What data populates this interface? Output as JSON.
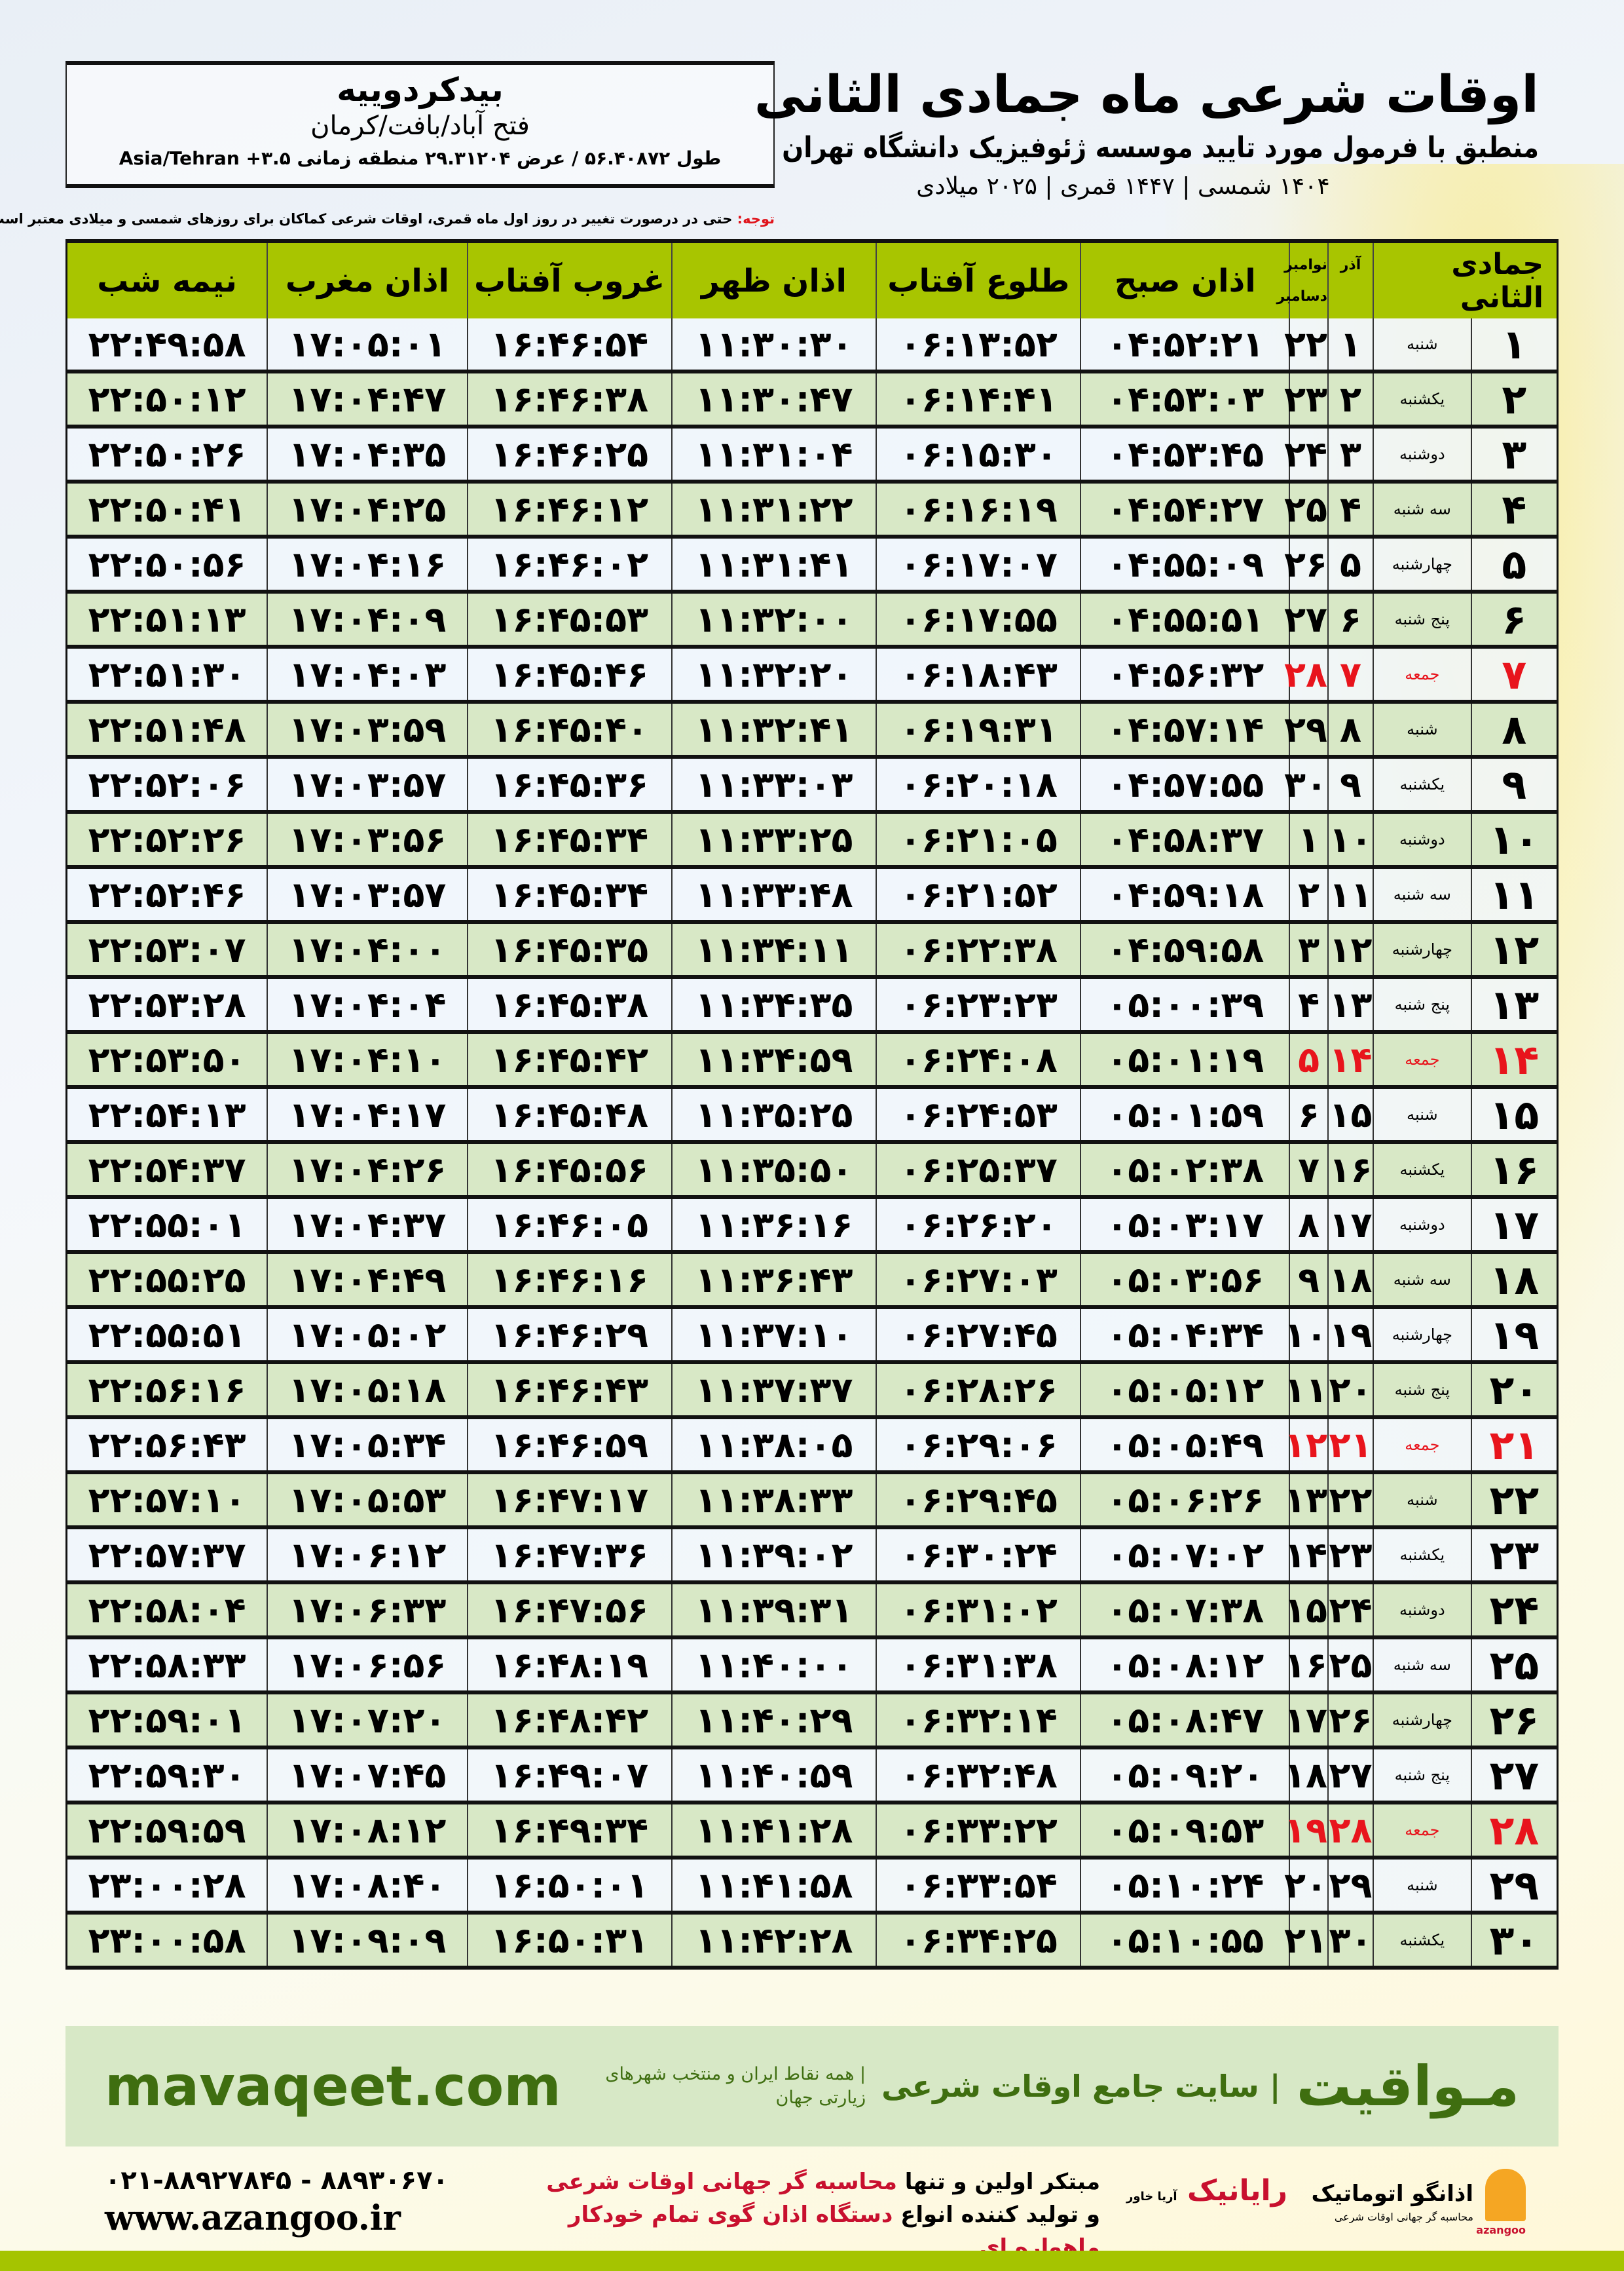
{
  "info": {
    "city": "بیدکردوییه",
    "region": "فتح آباد/بافت/کرمان",
    "coords": "طول ۵۶.۴۰۸۷۲ / عرض ۲۹.۳۱۲۰۴ منطقه زمانی ۳.۵+ Asia/Tehran"
  },
  "header": {
    "title": "اوقات شرعی ماه جمادی الثانی",
    "subtitle": "منطبق با فرمول مورد تایید موسسه ژئوفیزیک دانشگاه تهران",
    "years": "۱۴۰۴ شمسی | ۱۴۴۷ قمری | ۲۰۲۵ میلادی"
  },
  "note": {
    "label": "توجه:",
    "text": " حتی در درصورت تغییر در روز اول ماه قمری، اوقات شرعی کماکان برای روزهای شمسی و میلادی معتبر است."
  },
  "table": {
    "columns": {
      "month": "جمادی الثانی",
      "azar": "آذر",
      "nov": "نوامبر",
      "dec": "دسامبر",
      "fajr": "اذان صبح",
      "sunrise": "طلوع آفتاب",
      "dhuhr": "اذان ظهر",
      "sunset": "غروب آفتاب",
      "maghrib": "اذان مغرب",
      "midnight": "نیمه شب"
    },
    "holiday_color": "#e8141c",
    "header_color": "#a8c500",
    "rows": [
      {
        "d": "۱",
        "w": "شنبه",
        "a": "۱",
        "g": "۲۲",
        "t": [
          "۰۴:۵۲:۲۱",
          "۰۶:۱۳:۵۲",
          "۱۱:۳۰:۳۰",
          "۱۶:۴۶:۵۴",
          "۱۷:۰۵:۰۱",
          "۲۲:۴۹:۵۸"
        ]
      },
      {
        "d": "۲",
        "w": "یکشنبه",
        "a": "۲",
        "g": "۲۳",
        "t": [
          "۰۴:۵۳:۰۳",
          "۰۶:۱۴:۴۱",
          "۱۱:۳۰:۴۷",
          "۱۶:۴۶:۳۸",
          "۱۷:۰۴:۴۷",
          "۲۲:۵۰:۱۲"
        ]
      },
      {
        "d": "۳",
        "w": "دوشنبه",
        "a": "۳",
        "g": "۲۴",
        "t": [
          "۰۴:۵۳:۴۵",
          "۰۶:۱۵:۳۰",
          "۱۱:۳۱:۰۴",
          "۱۶:۴۶:۲۵",
          "۱۷:۰۴:۳۵",
          "۲۲:۵۰:۲۶"
        ]
      },
      {
        "d": "۴",
        "w": "سه شنبه",
        "a": "۴",
        "g": "۲۵",
        "t": [
          "۰۴:۵۴:۲۷",
          "۰۶:۱۶:۱۹",
          "۱۱:۳۱:۲۲",
          "۱۶:۴۶:۱۲",
          "۱۷:۰۴:۲۵",
          "۲۲:۵۰:۴۱"
        ]
      },
      {
        "d": "۵",
        "w": "چهارشنبه",
        "a": "۵",
        "g": "۲۶",
        "t": [
          "۰۴:۵۵:۰۹",
          "۰۶:۱۷:۰۷",
          "۱۱:۳۱:۴۱",
          "۱۶:۴۶:۰۲",
          "۱۷:۰۴:۱۶",
          "۲۲:۵۰:۵۶"
        ]
      },
      {
        "d": "۶",
        "w": "پنج شنبه",
        "a": "۶",
        "g": "۲۷",
        "t": [
          "۰۴:۵۵:۵۱",
          "۰۶:۱۷:۵۵",
          "۱۱:۳۲:۰۰",
          "۱۶:۴۵:۵۳",
          "۱۷:۰۴:۰۹",
          "۲۲:۵۱:۱۳"
        ]
      },
      {
        "d": "۷",
        "w": "جمعه",
        "a": "۷",
        "g": "۲۸",
        "h": true,
        "t": [
          "۰۴:۵۶:۳۲",
          "۰۶:۱۸:۴۳",
          "۱۱:۳۲:۲۰",
          "۱۶:۴۵:۴۶",
          "۱۷:۰۴:۰۳",
          "۲۲:۵۱:۳۰"
        ]
      },
      {
        "d": "۸",
        "w": "شنبه",
        "a": "۸",
        "g": "۲۹",
        "t": [
          "۰۴:۵۷:۱۴",
          "۰۶:۱۹:۳۱",
          "۱۱:۳۲:۴۱",
          "۱۶:۴۵:۴۰",
          "۱۷:۰۳:۵۹",
          "۲۲:۵۱:۴۸"
        ]
      },
      {
        "d": "۹",
        "w": "یکشنبه",
        "a": "۹",
        "g": "۳۰",
        "t": [
          "۰۴:۵۷:۵۵",
          "۰۶:۲۰:۱۸",
          "۱۱:۳۳:۰۳",
          "۱۶:۴۵:۳۶",
          "۱۷:۰۳:۵۷",
          "۲۲:۵۲:۰۶"
        ]
      },
      {
        "d": "۱۰",
        "w": "دوشنبه",
        "a": "۱۰",
        "g": "۱",
        "t": [
          "۰۴:۵۸:۳۷",
          "۰۶:۲۱:۰۵",
          "۱۱:۳۳:۲۵",
          "۱۶:۴۵:۳۴",
          "۱۷:۰۳:۵۶",
          "۲۲:۵۲:۲۶"
        ]
      },
      {
        "d": "۱۱",
        "w": "سه شنبه",
        "a": "۱۱",
        "g": "۲",
        "t": [
          "۰۴:۵۹:۱۸",
          "۰۶:۲۱:۵۲",
          "۱۱:۳۳:۴۸",
          "۱۶:۴۵:۳۴",
          "۱۷:۰۳:۵۷",
          "۲۲:۵۲:۴۶"
        ]
      },
      {
        "d": "۱۲",
        "w": "چهارشنبه",
        "a": "۱۲",
        "g": "۳",
        "t": [
          "۰۴:۵۹:۵۸",
          "۰۶:۲۲:۳۸",
          "۱۱:۳۴:۱۱",
          "۱۶:۴۵:۳۵",
          "۱۷:۰۴:۰۰",
          "۲۲:۵۳:۰۷"
        ]
      },
      {
        "d": "۱۳",
        "w": "پنج شنبه",
        "a": "۱۳",
        "g": "۴",
        "t": [
          "۰۵:۰۰:۳۹",
          "۰۶:۲۳:۲۳",
          "۱۱:۳۴:۳۵",
          "۱۶:۴۵:۳۸",
          "۱۷:۰۴:۰۴",
          "۲۲:۵۳:۲۸"
        ]
      },
      {
        "d": "۱۴",
        "w": "جمعه",
        "a": "۱۴",
        "g": "۵",
        "h": true,
        "t": [
          "۰۵:۰۱:۱۹",
          "۰۶:۲۴:۰۸",
          "۱۱:۳۴:۵۹",
          "۱۶:۴۵:۴۲",
          "۱۷:۰۴:۱۰",
          "۲۲:۵۳:۵۰"
        ]
      },
      {
        "d": "۱۵",
        "w": "شنبه",
        "a": "۱۵",
        "g": "۶",
        "t": [
          "۰۵:۰۱:۵۹",
          "۰۶:۲۴:۵۳",
          "۱۱:۳۵:۲۵",
          "۱۶:۴۵:۴۸",
          "۱۷:۰۴:۱۷",
          "۲۲:۵۴:۱۳"
        ]
      },
      {
        "d": "۱۶",
        "w": "یکشنبه",
        "a": "۱۶",
        "g": "۷",
        "t": [
          "۰۵:۰۲:۳۸",
          "۰۶:۲۵:۳۷",
          "۱۱:۳۵:۵۰",
          "۱۶:۴۵:۵۶",
          "۱۷:۰۴:۲۶",
          "۲۲:۵۴:۳۷"
        ]
      },
      {
        "d": "۱۷",
        "w": "دوشنبه",
        "a": "۱۷",
        "g": "۸",
        "t": [
          "۰۵:۰۳:۱۷",
          "۰۶:۲۶:۲۰",
          "۱۱:۳۶:۱۶",
          "۱۶:۴۶:۰۵",
          "۱۷:۰۴:۳۷",
          "۲۲:۵۵:۰۱"
        ]
      },
      {
        "d": "۱۸",
        "w": "سه شنبه",
        "a": "۱۸",
        "g": "۹",
        "t": [
          "۰۵:۰۳:۵۶",
          "۰۶:۲۷:۰۳",
          "۱۱:۳۶:۴۳",
          "۱۶:۴۶:۱۶",
          "۱۷:۰۴:۴۹",
          "۲۲:۵۵:۲۵"
        ]
      },
      {
        "d": "۱۹",
        "w": "چهارشنبه",
        "a": "۱۹",
        "g": "۱۰",
        "t": [
          "۰۵:۰۴:۳۴",
          "۰۶:۲۷:۴۵",
          "۱۱:۳۷:۱۰",
          "۱۶:۴۶:۲۹",
          "۱۷:۰۵:۰۲",
          "۲۲:۵۵:۵۱"
        ]
      },
      {
        "d": "۲۰",
        "w": "پنج شنبه",
        "a": "۲۰",
        "g": "۱۱",
        "t": [
          "۰۵:۰۵:۱۲",
          "۰۶:۲۸:۲۶",
          "۱۱:۳۷:۳۷",
          "۱۶:۴۶:۴۳",
          "۱۷:۰۵:۱۸",
          "۲۲:۵۶:۱۶"
        ]
      },
      {
        "d": "۲۱",
        "w": "جمعه",
        "a": "۲۱",
        "g": "۱۲",
        "h": true,
        "t": [
          "۰۵:۰۵:۴۹",
          "۰۶:۲۹:۰۶",
          "۱۱:۳۸:۰۵",
          "۱۶:۴۶:۵۹",
          "۱۷:۰۵:۳۴",
          "۲۲:۵۶:۴۳"
        ]
      },
      {
        "d": "۲۲",
        "w": "شنبه",
        "a": "۲۲",
        "g": "۱۳",
        "t": [
          "۰۵:۰۶:۲۶",
          "۰۶:۲۹:۴۵",
          "۱۱:۳۸:۳۳",
          "۱۶:۴۷:۱۷",
          "۱۷:۰۵:۵۳",
          "۲۲:۵۷:۱۰"
        ]
      },
      {
        "d": "۲۳",
        "w": "یکشنبه",
        "a": "۲۳",
        "g": "۱۴",
        "t": [
          "۰۵:۰۷:۰۲",
          "۰۶:۳۰:۲۴",
          "۱۱:۳۹:۰۲",
          "۱۶:۴۷:۳۶",
          "۱۷:۰۶:۱۲",
          "۲۲:۵۷:۳۷"
        ]
      },
      {
        "d": "۲۴",
        "w": "دوشنبه",
        "a": "۲۴",
        "g": "۱۵",
        "t": [
          "۰۵:۰۷:۳۸",
          "۰۶:۳۱:۰۲",
          "۱۱:۳۹:۳۱",
          "۱۶:۴۷:۵۶",
          "۱۷:۰۶:۳۳",
          "۲۲:۵۸:۰۴"
        ]
      },
      {
        "d": "۲۵",
        "w": "سه شنبه",
        "a": "۲۵",
        "g": "۱۶",
        "t": [
          "۰۵:۰۸:۱۲",
          "۰۶:۳۱:۳۸",
          "۱۱:۴۰:۰۰",
          "۱۶:۴۸:۱۹",
          "۱۷:۰۶:۵۶",
          "۲۲:۵۸:۳۳"
        ]
      },
      {
        "d": "۲۶",
        "w": "چهارشنبه",
        "a": "۲۶",
        "g": "۱۷",
        "t": [
          "۰۵:۰۸:۴۷",
          "۰۶:۳۲:۱۴",
          "۱۱:۴۰:۲۹",
          "۱۶:۴۸:۴۲",
          "۱۷:۰۷:۲۰",
          "۲۲:۵۹:۰۱"
        ]
      },
      {
        "d": "۲۷",
        "w": "پنج شنبه",
        "a": "۲۷",
        "g": "۱۸",
        "t": [
          "۰۵:۰۹:۲۰",
          "۰۶:۳۲:۴۸",
          "۱۱:۴۰:۵۹",
          "۱۶:۴۹:۰۷",
          "۱۷:۰۷:۴۵",
          "۲۲:۵۹:۳۰"
        ]
      },
      {
        "d": "۲۸",
        "w": "جمعه",
        "a": "۲۸",
        "g": "۱۹",
        "h": true,
        "t": [
          "۰۵:۰۹:۵۳",
          "۰۶:۳۳:۲۲",
          "۱۱:۴۱:۲۸",
          "۱۶:۴۹:۳۴",
          "۱۷:۰۸:۱۲",
          "۲۲:۵۹:۵۹"
        ]
      },
      {
        "d": "۲۹",
        "w": "شنبه",
        "a": "۲۹",
        "g": "۲۰",
        "t": [
          "۰۵:۱۰:۲۴",
          "۰۶:۳۳:۵۴",
          "۱۱:۴۱:۵۸",
          "۱۶:۵۰:۰۱",
          "۱۷:۰۸:۴۰",
          "۲۳:۰۰:۲۸"
        ]
      },
      {
        "d": "۳۰",
        "w": "یکشنبه",
        "a": "۳۰",
        "g": "۲۱",
        "t": [
          "۰۵:۱۰:۵۵",
          "۰۶:۳۴:۲۵",
          "۱۱:۴۲:۲۸",
          "۱۶:۵۰:۳۱",
          "۱۷:۰۹:۰۹",
          "۲۳:۰۰:۵۸"
        ]
      }
    ]
  },
  "footer": {
    "brand": "مـواقیت",
    "tagline": "| سایت جامع اوقات شرعی",
    "tagline2": "| همه نقاط ایران و منتخب شهرهای زیارتی جهان",
    "site": "mavaqeet.com",
    "phone": "۰۲۱-۸۸۹۲۷۸۴۵ - ۸۸۹۳۰۶۷۰",
    "web": "www.azangoo.ir",
    "promo_1a": "مبتکر اولین و تنها ",
    "promo_1b": "محاسبه گر جهانی اوقات شرعی",
    "promo_2a": "و تولید کننده انواع ",
    "promo_2b": "دستگاه اذان گوی تمام خودکار ماهواره ای",
    "logo_raianik": "رایانیک",
    "logo_raianik_sub": "آریا خاور",
    "logo_azangoo": "اذانگو اتوماتیک",
    "logo_azangoo_sub": "محاسبه گر جهانی اوقات شرعی",
    "logo_azangoo_latin": "azangoo"
  }
}
